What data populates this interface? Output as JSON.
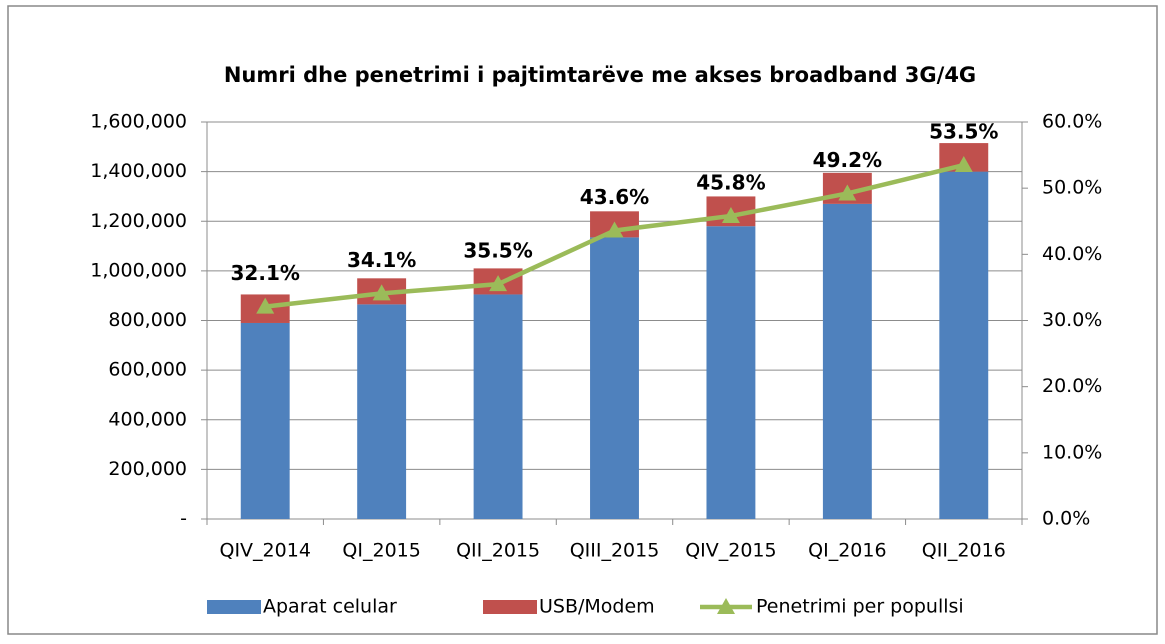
{
  "chart_data": {
    "type": "bar",
    "title": "Numri dhe penetrimi i pajtimtarëve me akses broadband 3G/4G",
    "categories": [
      "QIV_2014",
      "QI_2015",
      "QII_2015",
      "QIII_2015",
      "QIV_2015",
      "QI_2016",
      "QII_2016"
    ],
    "series": [
      {
        "name": "Aparat celular",
        "color": "#4f81bd",
        "type": "bar",
        "values": [
          790000,
          865000,
          905000,
          1135000,
          1180000,
          1270000,
          1400000
        ]
      },
      {
        "name": "USB/Modem",
        "color": "#c0504d",
        "type": "bar",
        "values": [
          115000,
          105000,
          105000,
          105000,
          120000,
          125000,
          115000
        ]
      },
      {
        "name": "Penetrimi per popullsi",
        "color": "#9bbb59",
        "type": "line",
        "axis": "y2",
        "values": [
          32.1,
          34.1,
          35.5,
          43.6,
          45.8,
          49.2,
          53.5
        ],
        "value_labels": [
          "32.1%",
          "34.1%",
          "35.5%",
          "43.6%",
          "45.8%",
          "49.2%",
          "53.5%"
        ]
      }
    ],
    "stacked": true,
    "ylim": [
      0,
      1600000
    ],
    "yticks": [
      {
        "value": 0,
        "label": "-"
      },
      {
        "value": 200000,
        "label": "200,000"
      },
      {
        "value": 400000,
        "label": "400,000"
      },
      {
        "value": 600000,
        "label": "600,000"
      },
      {
        "value": 800000,
        "label": "800,000"
      },
      {
        "value": 1000000,
        "label": "1,000,000"
      },
      {
        "value": 1200000,
        "label": "1,200,000"
      },
      {
        "value": 1400000,
        "label": "1,400,000"
      },
      {
        "value": 1600000,
        "label": "1,600,000"
      }
    ],
    "y2lim": [
      0,
      60
    ],
    "y2ticks": [
      {
        "value": 0,
        "label": "0.0%"
      },
      {
        "value": 10,
        "label": "10.0%"
      },
      {
        "value": 20,
        "label": "20.0%"
      },
      {
        "value": 30,
        "label": "30.0%"
      },
      {
        "value": 40,
        "label": "40.0%"
      },
      {
        "value": 50,
        "label": "50.0%"
      },
      {
        "value": 60,
        "label": "60.0%"
      }
    ],
    "grid": true,
    "legend": "bottom"
  }
}
